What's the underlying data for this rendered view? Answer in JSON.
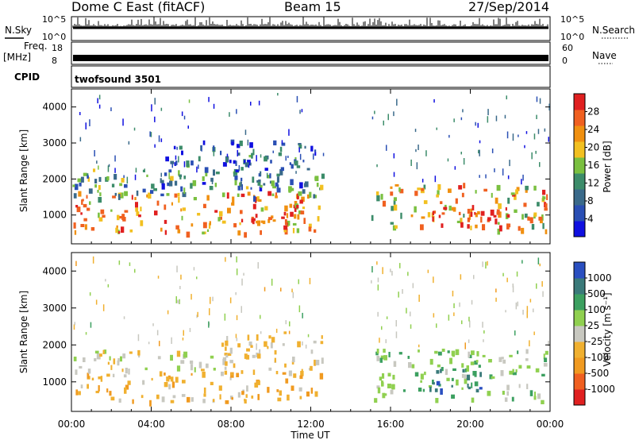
{
  "header": {
    "station": "Dome C East (fitACF)",
    "beam": "Beam 15",
    "date": "27/Sep/2014"
  },
  "strips": {
    "nsky_label": "N.Sky",
    "nsky_ticks": [
      "10^5",
      "10^0"
    ],
    "nsearch_label": "N.Search",
    "nsearch_ticks": [
      "10^5",
      "10^0"
    ],
    "freq_label": "Freq.",
    "freq_unit": "[MHz]",
    "freq_ticks": [
      "18",
      "8"
    ],
    "nave_label": "Nave",
    "nave_ticks": [
      "60",
      "0"
    ],
    "cpid_label": "CPID",
    "cpid_value": "twofsound 3501"
  },
  "colors": {
    "power_scale": [
      "#1010e0",
      "#2a4fb4",
      "#3a6a8a",
      "#3c8c6a",
      "#7ac040",
      "#f2c020",
      "#f09010",
      "#f06020",
      "#e02020"
    ],
    "velocity_scale": [
      "#e02020",
      "#f06020",
      "#f09a20",
      "#f0b030",
      "#c8c8c0",
      "#90d050",
      "#3ca060",
      "#3a7a7a",
      "#2a4fc0"
    ]
  },
  "chart_data": [
    {
      "type": "heatmap",
      "panel": "power",
      "ylabel": "Slant Range [km]",
      "ylim": [
        200,
        4500
      ],
      "yticks": [
        "4000",
        "3000",
        "2000",
        "1000"
      ],
      "xlim_hours": [
        0,
        24
      ],
      "colorbar": {
        "title": "Power [dB]",
        "ticks": [
          "28",
          "24",
          "20",
          "16",
          "12",
          "8",
          "4"
        ],
        "range": [
          0,
          32
        ]
      },
      "regions": [
        {
          "t0": 0.0,
          "t1": 12.6,
          "r0": 500,
          "r1": 1700,
          "level": 0.75
        },
        {
          "t0": 0.0,
          "t1": 12.6,
          "r0": 1500,
          "r1": 2300,
          "level": 0.35
        },
        {
          "t0": 4.5,
          "t1": 12.3,
          "r0": 1800,
          "r1": 3100,
          "level": 0.25
        },
        {
          "t0": 15.0,
          "t1": 24.0,
          "r0": 600,
          "r1": 1900,
          "level": 0.65
        },
        {
          "t0": 17.5,
          "t1": 22.0,
          "r0": 700,
          "r1": 1300,
          "level": 0.9
        },
        {
          "t0": 9.0,
          "t1": 12.4,
          "r0": 600,
          "r1": 1200,
          "level": 0.9
        }
      ]
    },
    {
      "type": "heatmap",
      "panel": "velocity",
      "ylabel": "Slant Range [km]",
      "ylim": [
        200,
        4500
      ],
      "yticks": [
        "4000",
        "3000",
        "2000",
        "1000"
      ],
      "xlim_hours": [
        0,
        24
      ],
      "xticks": [
        "00:00",
        "04:00",
        "08:00",
        "12:00",
        "16:00",
        "20:00",
        "00:00"
      ],
      "xlabel": "Time UT",
      "colorbar": {
        "title": "Velocity [m s⁻¹]",
        "ticks": [
          "1000",
          "500",
          "100",
          "25",
          "-25",
          "-100",
          "-500",
          "-1000"
        ],
        "range": [
          -1250,
          1250
        ]
      },
      "regions": [
        {
          "t0": 0.0,
          "t1": 12.6,
          "r0": 500,
          "r1": 1300,
          "velocity": -300
        },
        {
          "t0": 0.0,
          "t1": 8.0,
          "r0": 1200,
          "r1": 1900,
          "velocity": -10
        },
        {
          "t0": 7.5,
          "t1": 12.6,
          "r0": 1300,
          "r1": 2400,
          "velocity": -150
        },
        {
          "t0": 15.0,
          "t1": 24.0,
          "r0": 500,
          "r1": 1900,
          "velocity": 300
        },
        {
          "t0": 17.5,
          "t1": 20.5,
          "r0": 800,
          "r1": 1500,
          "velocity": 800
        }
      ]
    }
  ]
}
